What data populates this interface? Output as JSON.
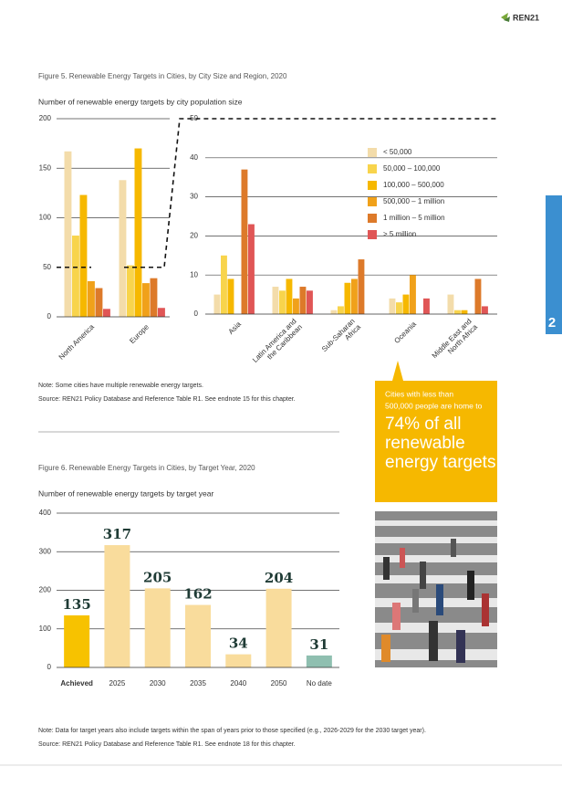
{
  "header": {
    "brand": "REN21"
  },
  "page_tab": "2",
  "figure5": {
    "title": "Figure 5.  Renewable Energy Targets in Cities, by City Size and Region, 2020",
    "note": "Note: Some cities have multiple renewable energy targets.",
    "source": "Source: REN21 Policy Database and Reference Table R1. See endnote 15 for this chapter."
  },
  "figure6": {
    "note": "Note: Data for target years also include targets within the span of years prior to those specified (e.g., 2026-2029 for the 2030 target year).",
    "source": "Source: REN21 Policy Database and Reference Table R1. See endnote 18 for this chapter."
  },
  "callout": {
    "lines": [
      "Cities with less than",
      "500,000 people are home to"
    ],
    "highlight": [
      "74% of all",
      "renewable",
      "energy targets."
    ]
  },
  "chart_data": [
    {
      "type": "bar",
      "y_label": "Number of renewable energy targets by city population size",
      "categories": [
        "North America",
        "Europe"
      ],
      "series": [
        {
          "color": "#f3dcaa",
          "values": [
            167,
            138
          ]
        },
        {
          "color": "#f8d44c",
          "values": [
            82,
            52
          ]
        },
        {
          "color": "#f6b800",
          "values": [
            123,
            170
          ]
        },
        {
          "color": "#f0a11a",
          "values": [
            36,
            34
          ]
        },
        {
          "color": "#dd7a2a",
          "values": [
            29,
            39
          ]
        },
        {
          "color": "#e05656",
          "values": [
            8,
            9
          ]
        }
      ],
      "ylim": [
        0,
        200
      ],
      "yticks": [
        0,
        50,
        100,
        150,
        200
      ],
      "grid": true
    },
    {
      "type": "bar",
      "categories": [
        "Asia",
        "Latin America and\nthe Caribbean",
        "Sub-Saharan\nAfrica",
        "Oceania",
        "Middle East and\nNorth Africa"
      ],
      "series": [
        {
          "name": "< 50,000",
          "color": "#f3dcaa",
          "values": [
            5,
            7,
            1,
            4,
            5
          ]
        },
        {
          "name": "50,000 – 100,000",
          "color": "#f8d44c",
          "values": [
            15,
            6,
            2,
            3,
            1
          ]
        },
        {
          "name": "100,000 – 500,000",
          "color": "#f6b800",
          "values": [
            9,
            9,
            8,
            5,
            1
          ]
        },
        {
          "name": "500,000 – 1 million",
          "color": "#f0a11a",
          "values": [
            0,
            4,
            9,
            10,
            0
          ]
        },
        {
          "name": "1 million – 5 million",
          "color": "#dd7a2a",
          "values": [
            37,
            7,
            14,
            0,
            9
          ]
        },
        {
          "name": "> 5 million",
          "color": "#e05656",
          "values": [
            23,
            6,
            0,
            4,
            2
          ]
        }
      ],
      "ylim": [
        0,
        50
      ],
      "yticks": [
        0,
        10,
        20,
        30,
        40,
        50
      ],
      "grid": true,
      "legend": "upper right"
    },
    {
      "type": "bar",
      "title": "Figure 6.  Renewable Energy Targets in Cities, by Target Year, 2020",
      "y_label": "Number of renewable energy targets by target year",
      "categories": [
        "Achieved",
        "2025",
        "2030",
        "2035",
        "2040",
        "2050",
        "No date"
      ],
      "values": [
        135,
        317,
        205,
        162,
        34,
        204,
        31
      ],
      "colors": [
        "#f7c200",
        "#f9dc9c",
        "#f9dc9c",
        "#f9dc9c",
        "#f9dc9c",
        "#f9dc9c",
        "#8fbfb0"
      ],
      "ylim": [
        0,
        400
      ],
      "yticks": [
        0,
        100,
        200,
        300,
        400
      ],
      "grid": true,
      "data_labels": true
    }
  ]
}
